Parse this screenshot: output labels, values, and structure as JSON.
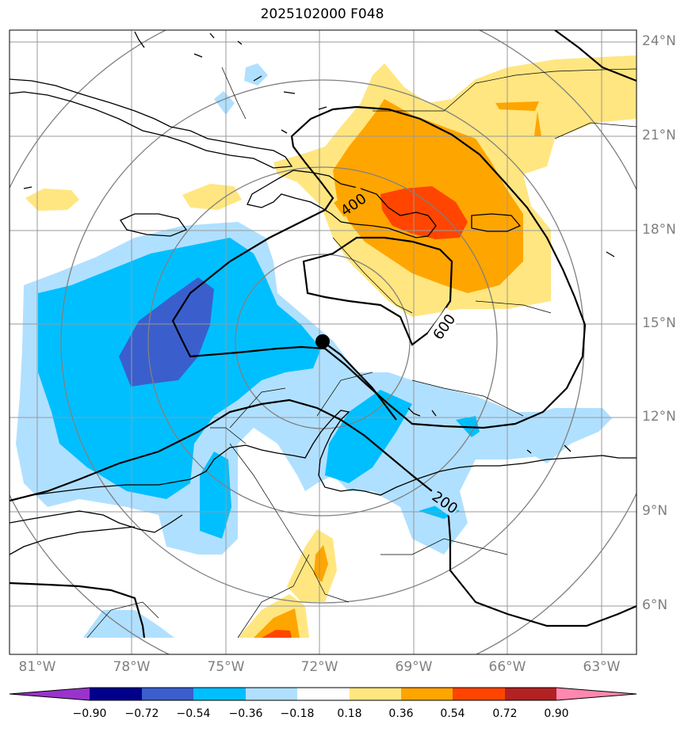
{
  "title": "2025102000 F048",
  "lat_labels": [
    "24°N",
    "21°N",
    "18°N",
    "15°N",
    "12°N",
    "9°N",
    "6°N"
  ],
  "lon_labels": [
    "81°W",
    "78°W",
    "75°W",
    "72°W",
    "69°W",
    "66°W",
    "63°W"
  ],
  "contour_labels": [
    "400",
    "600",
    "200"
  ],
  "colorbar": {
    "tick_labels": [
      "−0.90",
      "−0.72",
      "−0.54",
      "−0.36",
      "−0.18",
      "0.18",
      "0.36",
      "0.54",
      "0.72",
      "0.90"
    ],
    "colors": [
      "#9933cc",
      "#00008b",
      "#3a5fcd",
      "#00bfff",
      "#b0e0ff",
      "#ffffff",
      "#ffe680",
      "#ffa500",
      "#ff4500",
      "#b22222",
      "#ff88b0"
    ]
  },
  "colors": {
    "light_blue": "#b0e0ff",
    "deep_sky_blue": "#00bfff",
    "royal_blue": "#3a5fcd",
    "light_yellow": "#ffe680",
    "orange": "#ffa500",
    "orange_red": "#ff4500",
    "grid": "#999999"
  }
}
